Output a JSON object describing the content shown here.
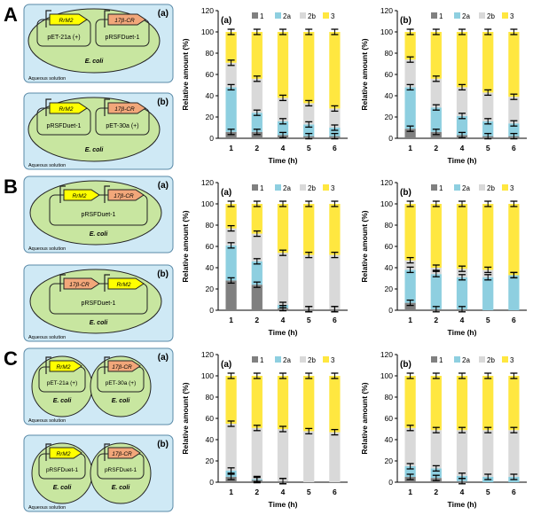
{
  "sections": [
    {
      "letter": "A",
      "schematics": [
        {
          "panel": "(a)",
          "kind": "two_plasmid_one_cell",
          "plasmids": [
            {
              "gene": "RrM2",
              "name": "pET-21a (+)"
            },
            {
              "gene": "17β-CR",
              "name": "pRSFDuet-1"
            }
          ],
          "cell": "E. coli",
          "medium": "Aqueous solution"
        },
        {
          "panel": "(b)",
          "kind": "two_plasmid_one_cell",
          "plasmids": [
            {
              "gene": "RrM2",
              "name": "pRSFDuet-1"
            },
            {
              "gene": "17β-CR",
              "name": "pET-30a (+)"
            }
          ],
          "cell": "E. coli",
          "medium": "Aqueous solution"
        }
      ]
    },
    {
      "letter": "B",
      "schematics": [
        {
          "panel": "(a)",
          "kind": "one_plasmid_one_cell",
          "genes": [
            "RrM2",
            "17β-CR"
          ],
          "plasmid": "pRSFDuet-1",
          "cell": "E. coli",
          "medium": "Aqueous solution"
        },
        {
          "panel": "(b)",
          "kind": "one_plasmid_one_cell",
          "genes": [
            "17β-CR",
            "RrM2"
          ],
          "plasmid": "pRSFDuet-1",
          "cell": "E. coli",
          "medium": "Aqueous solution"
        }
      ]
    },
    {
      "letter": "C",
      "schematics": [
        {
          "panel": "(a)",
          "kind": "two_cells",
          "cells": [
            {
              "gene": "RrM2",
              "plasmid": "pET-21a (+)",
              "cell": "E. coli"
            },
            {
              "gene": "17β-CR",
              "plasmid": "pET-30a (+)",
              "cell": "E. coli"
            }
          ],
          "medium": "Aqueous solution"
        },
        {
          "panel": "(b)",
          "kind": "two_cells",
          "cells": [
            {
              "gene": "RrM2",
              "plasmid": "pRSFDuet-1",
              "cell": "E. coli"
            },
            {
              "gene": "17β-CR",
              "plasmid": "pRSFDuet-1",
              "cell": "E. coli"
            }
          ],
          "medium": "Aqueous solution"
        }
      ]
    }
  ],
  "colors": {
    "box_fill": "#cfe9f5",
    "box_stroke": "#5a8aa8",
    "cell_fill": "#c8e6a0",
    "cell_stroke": "#222222",
    "gene_rrm2": "#ffff00",
    "gene_17bcr": "#f2a77a",
    "series_1": "#808080",
    "series_2a": "#8ecfe0",
    "series_2b": "#d9d9d9",
    "series_3": "#ffe740"
  },
  "chart_data": [
    {
      "type": "stacked_bar",
      "panel": "(a)",
      "section": "A",
      "xlabel": "Time (h)",
      "ylabel": "Relative amount (%)",
      "ylim": [
        0,
        120
      ],
      "yticks": [
        0,
        20,
        40,
        60,
        80,
        100,
        120
      ],
      "categories": [
        "1",
        "2",
        "4",
        "5",
        "6"
      ],
      "legend": [
        "1",
        "2a",
        "2b",
        "3"
      ],
      "series": [
        {
          "name": "1",
          "values": [
            6,
            6,
            3,
            2,
            2
          ]
        },
        {
          "name": "2a",
          "values": [
            42,
            18,
            13,
            11,
            8
          ]
        },
        {
          "name": "2b",
          "values": [
            23,
            32,
            22,
            20,
            18
          ]
        },
        {
          "name": "3",
          "values": [
            29,
            44,
            62,
            67,
            72
          ]
        }
      ],
      "error_tops": [
        [
          6,
          48,
          71,
          100
        ],
        [
          6,
          24,
          56,
          100
        ],
        [
          3,
          16,
          38,
          100
        ],
        [
          2,
          13,
          33,
          100
        ],
        [
          2,
          10,
          28,
          100
        ]
      ]
    },
    {
      "type": "stacked_bar",
      "panel": "(b)",
      "section": "A",
      "xlabel": "Time (h)",
      "ylabel": "Relative amount (%)",
      "ylim": [
        0,
        120
      ],
      "yticks": [
        0,
        20,
        40,
        60,
        80,
        100,
        120
      ],
      "categories": [
        "1",
        "2",
        "4",
        "5",
        "6"
      ],
      "legend": [
        "1",
        "2a",
        "2b",
        "3"
      ],
      "series": [
        {
          "name": "1",
          "values": [
            9,
            6,
            3,
            2,
            2
          ]
        },
        {
          "name": "2a",
          "values": [
            39,
            23,
            18,
            14,
            12
          ]
        },
        {
          "name": "2b",
          "values": [
            26,
            27,
            27,
            27,
            25
          ]
        },
        {
          "name": "3",
          "values": [
            26,
            44,
            52,
            57,
            61
          ]
        }
      ],
      "error_tops": [
        [
          9,
          48,
          74,
          100
        ],
        [
          6,
          29,
          56,
          100
        ],
        [
          3,
          21,
          48,
          100
        ],
        [
          2,
          16,
          43,
          100
        ],
        [
          2,
          14,
          39,
          100
        ]
      ]
    },
    {
      "type": "stacked_bar",
      "panel": "(a)",
      "section": "B",
      "xlabel": "Time (h)",
      "ylabel": "Relative amount (%)",
      "ylim": [
        0,
        120
      ],
      "yticks": [
        0,
        20,
        40,
        60,
        80,
        100,
        120
      ],
      "categories": [
        "1",
        "2",
        "4",
        "5",
        "6"
      ],
      "legend": [
        "1",
        "2a",
        "2b",
        "3"
      ],
      "series": [
        {
          "name": "1",
          "values": [
            28,
            24,
            2,
            1,
            1
          ]
        },
        {
          "name": "2a",
          "values": [
            33,
            22,
            3,
            0,
            0
          ]
        },
        {
          "name": "2b",
          "values": [
            16,
            26,
            49,
            51,
            51
          ]
        },
        {
          "name": "3",
          "values": [
            23,
            28,
            46,
            48,
            48
          ]
        }
      ],
      "error_tops": [
        [
          28,
          61,
          77,
          100
        ],
        [
          24,
          46,
          72,
          100
        ],
        [
          2,
          5,
          54,
          100
        ],
        [
          1,
          1,
          52,
          100
        ],
        [
          1,
          1,
          52,
          100
        ]
      ]
    },
    {
      "type": "stacked_bar",
      "panel": "(b)",
      "section": "B",
      "xlabel": "Time (h)",
      "ylabel": "Relative amount (%)",
      "ylim": [
        0,
        120
      ],
      "yticks": [
        0,
        20,
        40,
        60,
        80,
        100,
        120
      ],
      "categories": [
        "1",
        "2",
        "4",
        "5",
        "6"
      ],
      "legend": [
        "1",
        "2a",
        "2b",
        "3"
      ],
      "series": [
        {
          "name": "1",
          "values": [
            7,
            1,
            1,
            0,
            0
          ]
        },
        {
          "name": "2a",
          "values": [
            31,
            33,
            30,
            31,
            33
          ]
        },
        {
          "name": "2b",
          "values": [
            9,
            6,
            8,
            7,
            0
          ]
        },
        {
          "name": "3",
          "values": [
            53,
            60,
            61,
            62,
            67
          ]
        }
      ],
      "error_tops": [
        [
          7,
          38,
          47,
          100
        ],
        [
          1,
          34,
          40,
          100
        ],
        [
          1,
          31,
          39,
          100
        ],
        [
          0,
          31,
          38,
          100
        ],
        [
          0,
          33,
          33,
          100
        ]
      ]
    },
    {
      "type": "stacked_bar",
      "panel": "(a)",
      "section": "C",
      "xlabel": "Time (h)",
      "ylabel": "Relative amount (%)",
      "ylim": [
        0,
        120
      ],
      "yticks": [
        0,
        20,
        40,
        60,
        80,
        100,
        120
      ],
      "categories": [
        "1",
        "2",
        "4",
        "5",
        "6"
      ],
      "legend": [
        "1",
        "2a",
        "2b",
        "3"
      ],
      "series": [
        {
          "name": "1",
          "values": [
            5,
            2,
            1,
            0,
            0
          ]
        },
        {
          "name": "2a",
          "values": [
            6,
            1,
            0,
            0,
            0
          ]
        },
        {
          "name": "2b",
          "values": [
            44,
            48,
            49,
            48,
            47
          ]
        },
        {
          "name": "3",
          "values": [
            45,
            49,
            50,
            52,
            53
          ]
        }
      ],
      "error_tops": [
        [
          5,
          11,
          55,
          100
        ],
        [
          2,
          3,
          51,
          100
        ],
        [
          1,
          1,
          50,
          100
        ],
        [
          0,
          0,
          48,
          100
        ],
        [
          0,
          0,
          47,
          100
        ]
      ]
    },
    {
      "type": "stacked_bar",
      "panel": "(b)",
      "section": "C",
      "xlabel": "Time (h)",
      "ylabel": "Relative amount (%)",
      "ylim": [
        0,
        120
      ],
      "yticks": [
        0,
        20,
        40,
        60,
        80,
        100,
        120
      ],
      "categories": [
        "1",
        "2",
        "4",
        "5",
        "6"
      ],
      "legend": [
        "1",
        "2a",
        "2b",
        "3"
      ],
      "series": [
        {
          "name": "1",
          "values": [
            5,
            4,
            1,
            0,
            0
          ]
        },
        {
          "name": "2a",
          "values": [
            10,
            9,
            5,
            5,
            5
          ]
        },
        {
          "name": "2b",
          "values": [
            36,
            36,
            43,
            44,
            44
          ]
        },
        {
          "name": "3",
          "values": [
            49,
            51,
            51,
            51,
            51
          ]
        }
      ],
      "error_tops": [
        [
          5,
          15,
          51,
          100
        ],
        [
          4,
          13,
          49,
          100
        ],
        [
          1,
          6,
          49,
          100
        ],
        [
          0,
          5,
          49,
          100
        ],
        [
          0,
          5,
          49,
          100
        ]
      ]
    }
  ]
}
